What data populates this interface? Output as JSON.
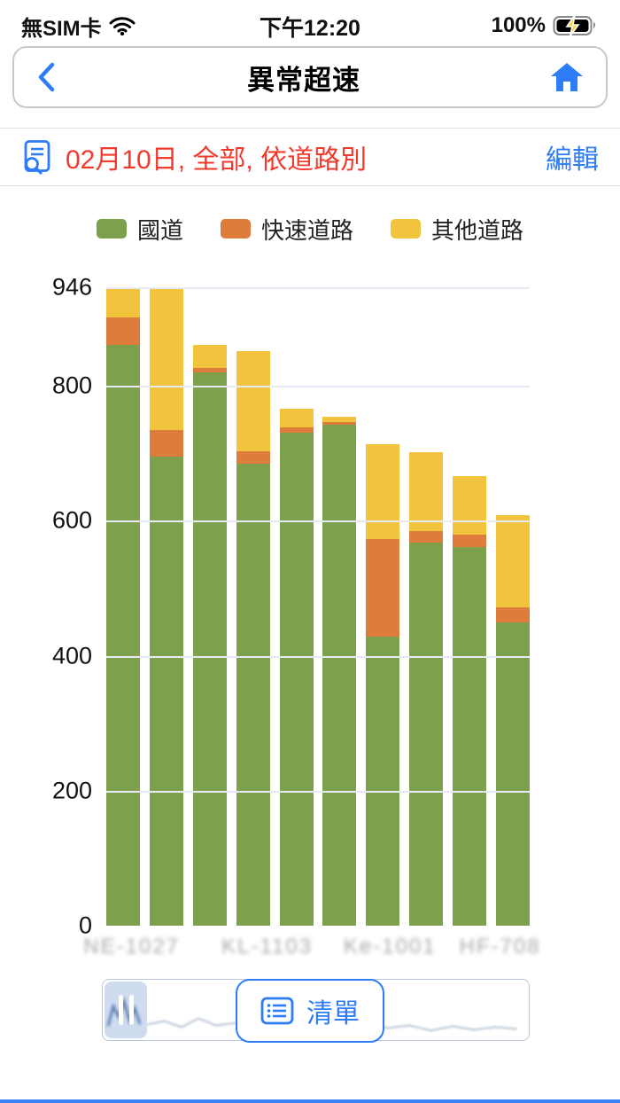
{
  "status_bar": {
    "carrier": "無SIM卡",
    "time": "下午12:20",
    "battery_percent": "100%"
  },
  "nav": {
    "title": "異常超速"
  },
  "filter": {
    "summary": "02月10日, 全部, 依道路別",
    "edit_label": "編輯"
  },
  "chart_data": {
    "type": "bar",
    "stacked": true,
    "title": "",
    "xlabel": "",
    "ylabel": "",
    "ylim": [
      0,
      946
    ],
    "yticks": [
      946,
      800,
      600,
      400,
      200,
      0
    ],
    "grid": true,
    "legend_position": "top",
    "series": [
      {
        "name": "國道",
        "color": "#7CA04B",
        "values": [
          860,
          695,
          820,
          685,
          730,
          742,
          428,
          567,
          561,
          450
        ]
      },
      {
        "name": "快速道路",
        "color": "#DE7C3C",
        "values": [
          42,
          40,
          6,
          18,
          8,
          4,
          145,
          18,
          18,
          22
        ]
      },
      {
        "name": "其他道路",
        "color": "#F2C33C",
        "values": [
          44,
          210,
          34,
          148,
          28,
          8,
          140,
          117,
          87,
          136
        ]
      }
    ],
    "totals": [
      946,
      945,
      860,
      851,
      766,
      754,
      713,
      702,
      666,
      608
    ],
    "x_labels": [
      {
        "text": "NE-1027",
        "pos": 0.06
      },
      {
        "text": "KL-1103",
        "pos": 0.38
      },
      {
        "text": "Ke-1001",
        "pos": 0.67
      },
      {
        "text": "HF-708",
        "pos": 0.93
      }
    ]
  },
  "footer": {
    "list_label": "清單"
  },
  "colors": {
    "accent_blue": "#2e7cf6",
    "alert_red": "#f2392c"
  }
}
